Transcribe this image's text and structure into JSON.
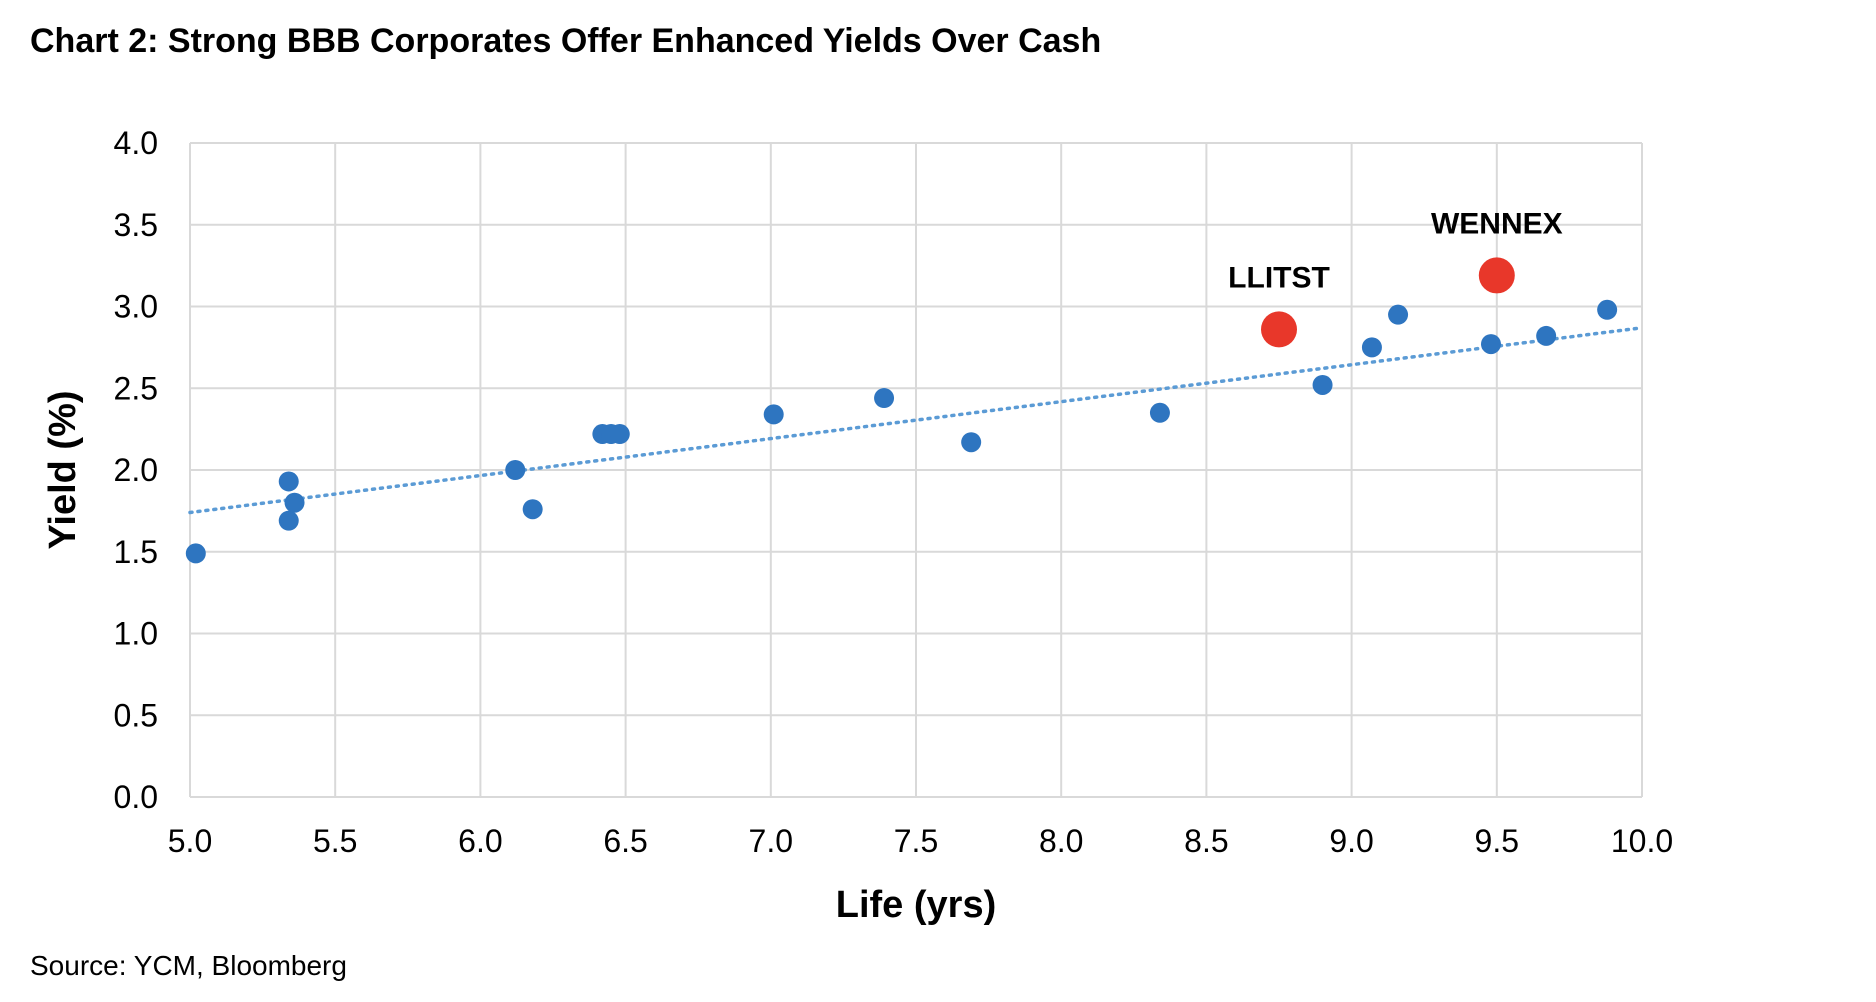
{
  "title": "Chart 2: Strong BBB Corporates Offer Enhanced Yields Over Cash",
  "source": "Source: YCM, Bloomberg",
  "colors": {
    "point": "#2E75C0",
    "highlight": "#E8372A",
    "trend": "#5B9BD5",
    "grid": "#D9D9D9"
  },
  "chart_data": {
    "type": "scatter",
    "title": "Chart 2: Strong BBB Corporates Offer Enhanced Yields Over Cash",
    "xlabel": "Life (yrs)",
    "ylabel": "Yield (%)",
    "xlim": [
      5.0,
      10.0
    ],
    "ylim": [
      0.0,
      4.0
    ],
    "xticks": [
      "5.0",
      "5.5",
      "6.0",
      "6.5",
      "7.0",
      "7.5",
      "8.0",
      "8.5",
      "9.0",
      "9.5",
      "10.0"
    ],
    "yticks": [
      "0.0",
      "0.5",
      "1.0",
      "1.5",
      "2.0",
      "2.5",
      "3.0",
      "3.5",
      "4.0"
    ],
    "grid": true,
    "series": [
      {
        "name": "BBB Corporates",
        "x": [
          5.02,
          5.34,
          5.34,
          5.36,
          6.12,
          6.18,
          6.42,
          6.45,
          6.48,
          7.01,
          7.39,
          7.69,
          8.34,
          8.9,
          9.07,
          9.16,
          9.48,
          9.67,
          9.88
        ],
        "y": [
          1.49,
          1.93,
          1.69,
          1.8,
          2.0,
          1.76,
          2.22,
          2.22,
          2.22,
          2.34,
          2.44,
          2.17,
          2.35,
          2.52,
          2.75,
          2.95,
          2.77,
          2.82,
          2.98
        ]
      }
    ],
    "highlights": [
      {
        "label": "LLITST",
        "x": 8.75,
        "y": 2.86
      },
      {
        "label": "WENNEX",
        "x": 9.5,
        "y": 3.19
      }
    ],
    "trendline": {
      "type": "linear",
      "x": [
        5.0,
        10.0
      ],
      "y": [
        1.74,
        2.87
      ]
    }
  }
}
